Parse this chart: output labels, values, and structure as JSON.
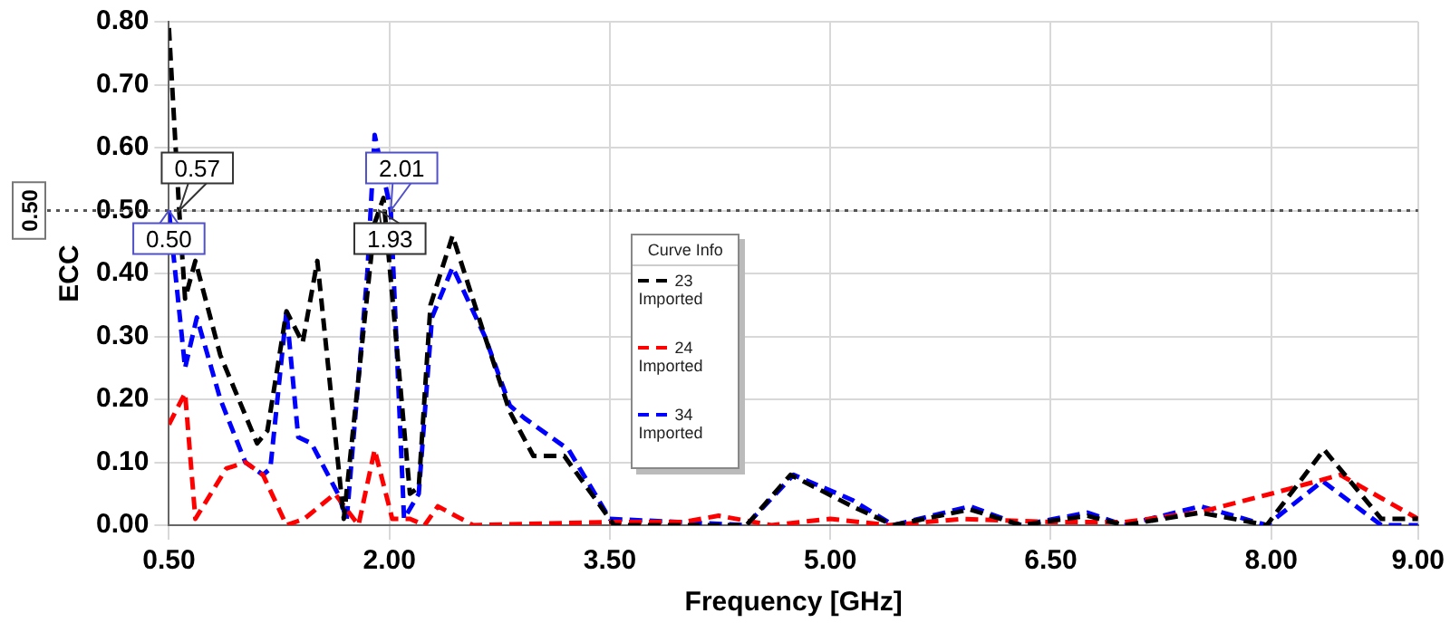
{
  "chart_data": {
    "type": "line",
    "xlabel": "Frequency [GHz]",
    "ylabel": "ECC",
    "legend_title": "Curve Info",
    "legend": "center",
    "grid": true,
    "marker": "none",
    "line_style": "dashed",
    "xlim": [
      0.5,
      9.0
    ],
    "ylim": [
      0,
      0.8
    ],
    "xticks": [
      {
        "value": 0.5,
        "label": "0.50"
      },
      {
        "value": 2.0,
        "label": "2.00"
      },
      {
        "value": 3.5,
        "label": "3.50"
      },
      {
        "value": 5.0,
        "label": "5.00"
      },
      {
        "value": 6.5,
        "label": "6.50"
      },
      {
        "value": 8.0,
        "label": "8.00"
      },
      {
        "value": 9.0,
        "label": "9.00"
      }
    ],
    "yticks": [
      {
        "value": 0,
        "label": "0.00"
      },
      {
        "value": 0.1,
        "label": "0.10"
      },
      {
        "value": 0.2,
        "label": "0.20"
      },
      {
        "value": 0.3,
        "label": "0.30"
      },
      {
        "value": 0.4,
        "label": "0.40"
      },
      {
        "value": 0.5,
        "label": "0.50"
      },
      {
        "value": 0.6,
        "label": "0.60"
      },
      {
        "value": 0.7,
        "label": "0.70"
      },
      {
        "value": 0.8,
        "label": "0.80"
      }
    ],
    "ref_lines": [
      {
        "axis": "y",
        "value": 0.5,
        "label": "0.50",
        "color": "#555555",
        "line_style": "dotted"
      }
    ],
    "annotations": [
      {
        "text": "0.57",
        "x": 0.57,
        "y": 0.5
      },
      {
        "text": "0.50",
        "x": 0.5,
        "y": 0.5
      },
      {
        "text": "2.01",
        "x": 2.01,
        "y": 0.5
      },
      {
        "text": "1.93",
        "x": 1.93,
        "y": 0.5
      }
    ],
    "series": [
      {
        "name": "23 Imported",
        "color": "#000000",
        "x": [
          0.5,
          0.57,
          0.61,
          0.68,
          0.85,
          1.1,
          1.17,
          1.3,
          1.41,
          1.51,
          1.69,
          1.9,
          1.93,
          1.96,
          2.14,
          2.2,
          2.28,
          2.43,
          2.65,
          2.82,
          2.98,
          3.19,
          3.53,
          4.43,
          4.73,
          5.15,
          5.43,
          5.95,
          6.3,
          6.75,
          7.0,
          7.52,
          7.97,
          8.36,
          8.75,
          9.0
        ],
        "values": [
          0.79,
          0.5,
          0.36,
          0.42,
          0.27,
          0.13,
          0.15,
          0.34,
          0.29,
          0.42,
          0.01,
          0.48,
          0.5,
          0.52,
          0.05,
          0.06,
          0.35,
          0.46,
          0.3,
          0.18,
          0.11,
          0.11,
          0.0,
          0.0,
          0.08,
          0.03,
          0.0,
          0.025,
          0.0,
          0.015,
          0.0,
          0.02,
          0.0,
          0.12,
          0.01,
          0.01
        ]
      },
      {
        "name": "24 Imported",
        "color": "#ff0000",
        "x": [
          0.5,
          0.61,
          0.68,
          0.89,
          1.02,
          1.14,
          1.3,
          1.42,
          1.63,
          1.79,
          1.9,
          2.02,
          2.14,
          2.24,
          2.33,
          2.57,
          3.5,
          4.0,
          4.24,
          4.6,
          5.0,
          5.4,
          5.9,
          6.5,
          7.0,
          7.5,
          8.0,
          8.47,
          9.0
        ],
        "values": [
          0.16,
          0.21,
          0.01,
          0.09,
          0.1,
          0.08,
          0.0,
          0.01,
          0.05,
          0.0,
          0.12,
          0.01,
          0.01,
          0.0,
          0.03,
          0.0,
          0.005,
          0.005,
          0.015,
          0.0,
          0.01,
          0.0,
          0.01,
          0.005,
          0.005,
          0.02,
          0.05,
          0.08,
          0.01
        ]
      },
      {
        "name": "34 Imported",
        "color": "#0000ff",
        "x": [
          0.5,
          0.61,
          0.69,
          0.85,
          1.02,
          1.14,
          1.19,
          1.3,
          1.38,
          1.47,
          1.65,
          1.71,
          1.85,
          1.9,
          2.01,
          2.1,
          2.2,
          2.29,
          2.43,
          2.65,
          2.82,
          2.92,
          3.1,
          3.22,
          3.5,
          4.43,
          4.75,
          5.15,
          5.43,
          5.95,
          6.3,
          6.75,
          7.0,
          7.52,
          7.97,
          8.35,
          8.75,
          9.0
        ],
        "values": [
          0.5,
          0.25,
          0.33,
          0.2,
          0.1,
          0.08,
          0.09,
          0.34,
          0.14,
          0.13,
          0.05,
          0.01,
          0.4,
          0.62,
          0.5,
          0.01,
          0.05,
          0.33,
          0.41,
          0.3,
          0.19,
          0.17,
          0.14,
          0.12,
          0.01,
          0.0,
          0.08,
          0.04,
          0.0,
          0.03,
          0.0,
          0.02,
          0.0,
          0.03,
          0.0,
          0.07,
          0.0,
          0.0
        ]
      }
    ]
  }
}
